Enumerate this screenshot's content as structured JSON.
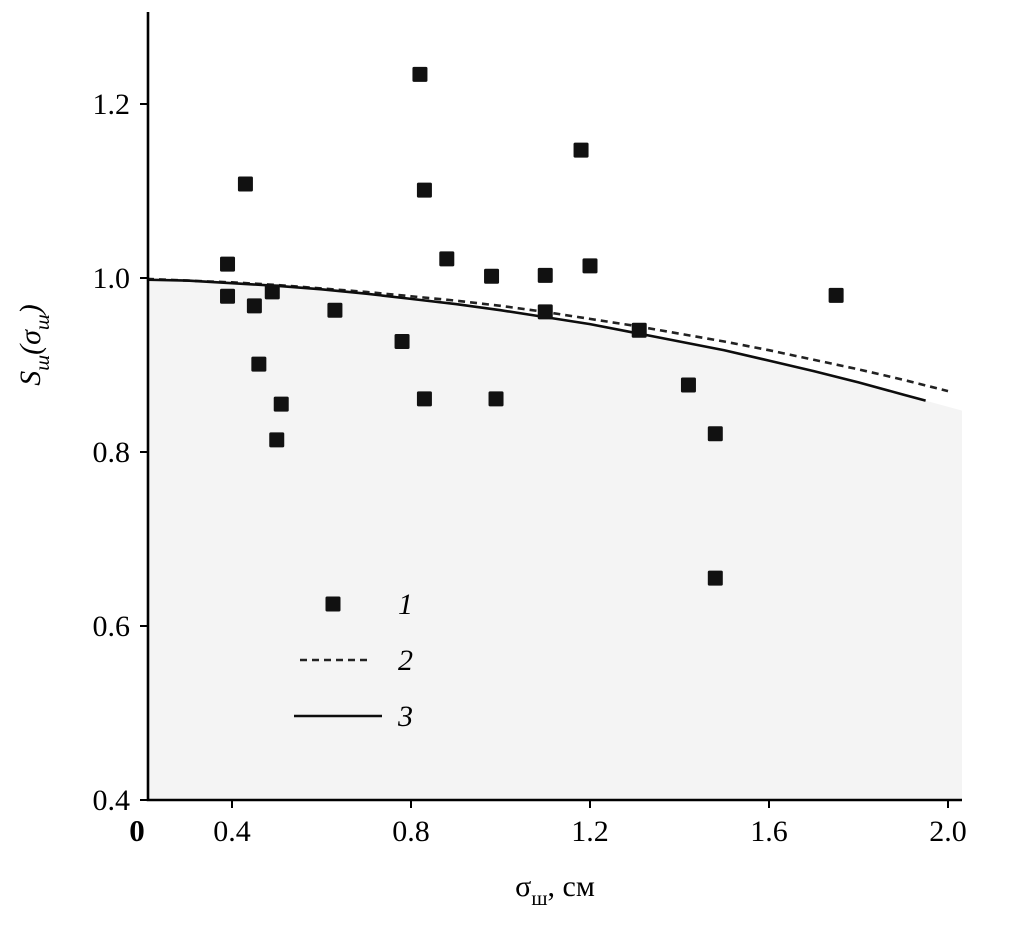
{
  "chart_data": {
    "type": "scatter",
    "title": "",
    "xlabel": "σ_ш, см",
    "ylabel": "S_ш(σ_ш)",
    "xlim": [
      0,
      2.0
    ],
    "ylim": [
      0.4,
      1.31
    ],
    "grid": false,
    "x_ticks": [
      0,
      0.4,
      0.8,
      1.2,
      1.6,
      2.0
    ],
    "x_tick_labels": [
      "0",
      "0.4",
      "0.8",
      "1.2",
      "1.6",
      "2.0"
    ],
    "y_ticks": [
      0.4,
      0.6,
      0.8,
      1.0,
      1.2
    ],
    "y_tick_labels": [
      "0.4",
      "0.6",
      "0.8",
      "1.0",
      "1.2"
    ],
    "colors": {
      "marker": "#111111",
      "solid_line": "#0d0d0d",
      "dashed_line": "#222222",
      "axis": "#000000",
      "area_fill": "#f4f4f4"
    },
    "legend": {
      "position": "inside-lower-left",
      "entries": [
        {
          "label": "1",
          "marker": "filled-square"
        },
        {
          "label": "2",
          "marker": "dashed-line"
        },
        {
          "label": "3",
          "marker": "solid-line"
        }
      ]
    },
    "series": [
      {
        "name": "1",
        "type": "scatter",
        "marker": "filled-square",
        "color": "#111111",
        "points": [
          [
            0.39,
            1.016
          ],
          [
            0.39,
            0.979
          ],
          [
            0.43,
            1.108
          ],
          [
            0.45,
            0.968
          ],
          [
            0.46,
            0.901
          ],
          [
            0.49,
            0.984
          ],
          [
            0.5,
            0.814
          ],
          [
            0.51,
            0.855
          ],
          [
            0.63,
            0.963
          ],
          [
            0.78,
            0.927
          ],
          [
            0.82,
            1.234
          ],
          [
            0.83,
            1.101
          ],
          [
            0.83,
            0.861
          ],
          [
            0.88,
            1.022
          ],
          [
            0.98,
            1.002
          ],
          [
            0.99,
            0.861
          ],
          [
            1.1,
            1.003
          ],
          [
            1.1,
            0.961
          ],
          [
            1.18,
            1.147
          ],
          [
            1.2,
            1.014
          ],
          [
            1.31,
            0.94
          ],
          [
            1.42,
            0.877
          ],
          [
            1.48,
            0.821
          ],
          [
            1.48,
            0.655
          ],
          [
            1.75,
            0.98
          ]
        ]
      },
      {
        "name": "2",
        "type": "line",
        "style": "dashed",
        "color": "#222222",
        "points": [
          [
            0.21,
            0.999
          ],
          [
            0.3,
            0.997
          ],
          [
            0.4,
            0.995
          ],
          [
            0.5,
            0.992
          ],
          [
            0.6,
            0.988
          ],
          [
            0.7,
            0.984
          ],
          [
            0.8,
            0.979
          ],
          [
            0.9,
            0.974
          ],
          [
            1.0,
            0.968
          ],
          [
            1.1,
            0.961
          ],
          [
            1.2,
            0.953
          ],
          [
            1.3,
            0.945
          ],
          [
            1.4,
            0.936
          ],
          [
            1.5,
            0.927
          ],
          [
            1.6,
            0.917
          ],
          [
            1.7,
            0.906
          ],
          [
            1.8,
            0.895
          ],
          [
            1.9,
            0.883
          ],
          [
            2.0,
            0.87
          ]
        ]
      },
      {
        "name": "3",
        "type": "line",
        "style": "solid",
        "color": "#0d0d0d",
        "points": [
          [
            0.21,
            0.998
          ],
          [
            0.3,
            0.997
          ],
          [
            0.4,
            0.994
          ],
          [
            0.5,
            0.991
          ],
          [
            0.6,
            0.987
          ],
          [
            0.7,
            0.982
          ],
          [
            0.8,
            0.976
          ],
          [
            0.9,
            0.97
          ],
          [
            1.0,
            0.963
          ],
          [
            1.1,
            0.955
          ],
          [
            1.2,
            0.947
          ],
          [
            1.3,
            0.937
          ],
          [
            1.4,
            0.927
          ],
          [
            1.5,
            0.917
          ],
          [
            1.6,
            0.905
          ],
          [
            1.7,
            0.893
          ],
          [
            1.8,
            0.88
          ],
          [
            1.9,
            0.866
          ],
          [
            1.95,
            0.859
          ]
        ]
      }
    ]
  }
}
